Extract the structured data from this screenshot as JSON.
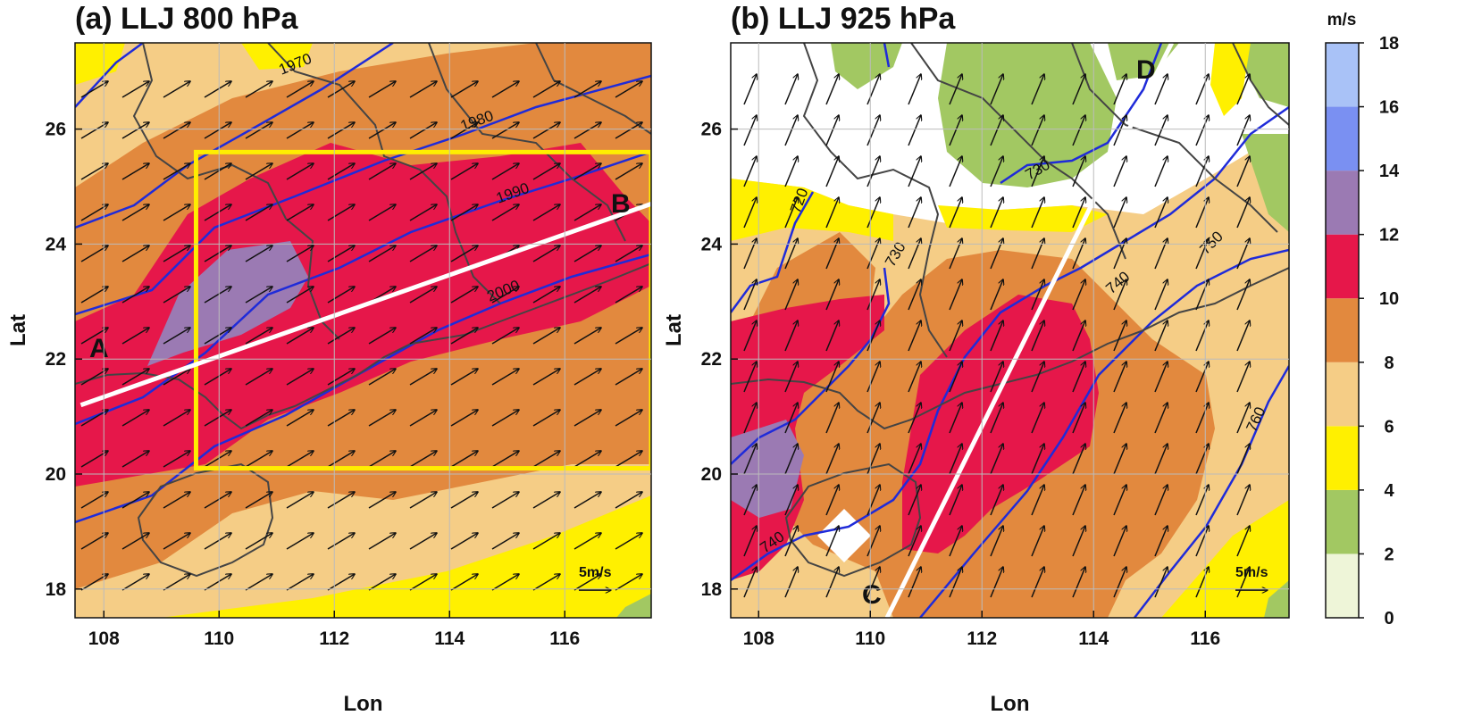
{
  "figure": {
    "panels": [
      {
        "id": "a",
        "title": "(a) LLJ 800 hPa",
        "xlabel": "Lon",
        "ylabel": "Lat",
        "xlim": [
          107.5,
          117.5
        ],
        "ylim": [
          17.5,
          27.5
        ],
        "xticks": [
          "108",
          "110",
          "112",
          "114",
          "116"
        ],
        "yticks": [
          "18",
          "20",
          "22",
          "24",
          "26"
        ],
        "contour_labels": [
          "1970",
          "1980",
          "1990",
          "2000"
        ],
        "box": {
          "lon": [
            109.6,
            117.5
          ],
          "lat": [
            20.1,
            25.6
          ],
          "color": "#ffee00"
        },
        "section": {
          "start": [
            107.6,
            21.2
          ],
          "end": [
            117.5,
            24.7
          ],
          "start_label": "A",
          "end_label": "B"
        },
        "reference_vector": "5m/s"
      },
      {
        "id": "b",
        "title": "(b) LLJ 925 hPa",
        "xlabel": "Lon",
        "ylabel": "Lat",
        "xlim": [
          107.5,
          117.5
        ],
        "ylim": [
          17.5,
          27.5
        ],
        "xticks": [
          "108",
          "110",
          "112",
          "114",
          "116"
        ],
        "yticks": [
          "18",
          "20",
          "22",
          "24",
          "26"
        ],
        "contour_labels": [
          "720",
          "730",
          "730",
          "740",
          "750",
          "740",
          "760"
        ],
        "section": {
          "start": [
            110.3,
            17.5
          ],
          "end": [
            115.4,
            27.5
          ],
          "start_label": "C",
          "end_label": "D"
        },
        "reference_vector": "5m/s"
      }
    ],
    "colorbar": {
      "unit": "m/s",
      "ticks": [
        "0",
        "2",
        "4",
        "6",
        "8",
        "10",
        "12",
        "14",
        "16",
        "18"
      ],
      "colors": [
        "#eef5d8",
        "#a2c862",
        "#fff000",
        "#f5cd86",
        "#e2893e",
        "#e6174a",
        "#9b7ab3",
        "#7a90f2",
        "#a9c2f7"
      ]
    },
    "colors": {
      "contour_line": "#1f2bd9",
      "coastline": "#444444",
      "box": "#ffee00",
      "section_line": "#ffffff"
    }
  }
}
